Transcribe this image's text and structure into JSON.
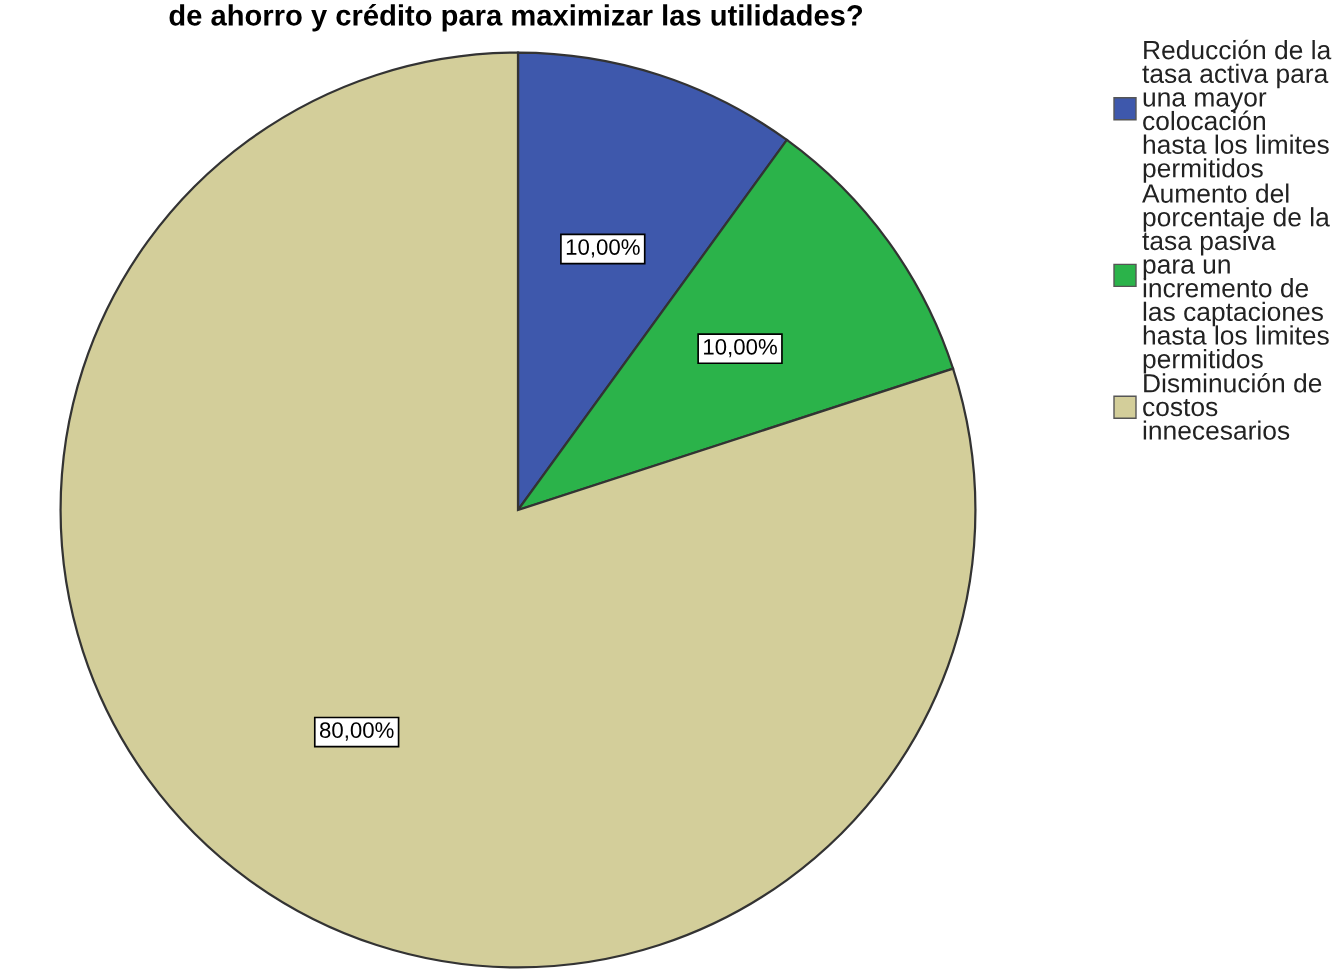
{
  "chart_data": {
    "type": "pie",
    "title": "de ahorro y crédito para maximizar las utilidades?",
    "categories": [
      "Reducción de la tasa activa para una mayor colocación hasta los limites permitidos",
      "Aumento del porcentaje de la tasa pasiva para un incremento de las captaciones hasta los limites permitidos",
      "Disminución de costos innecesarios"
    ],
    "values": [
      10,
      10,
      80
    ],
    "colors": [
      "#3e58ac",
      "#2bb34a",
      "#d3ce9a"
    ],
    "value_labels": [
      "10,00%",
      "10,00%",
      "80,00%"
    ],
    "legend": "right"
  }
}
